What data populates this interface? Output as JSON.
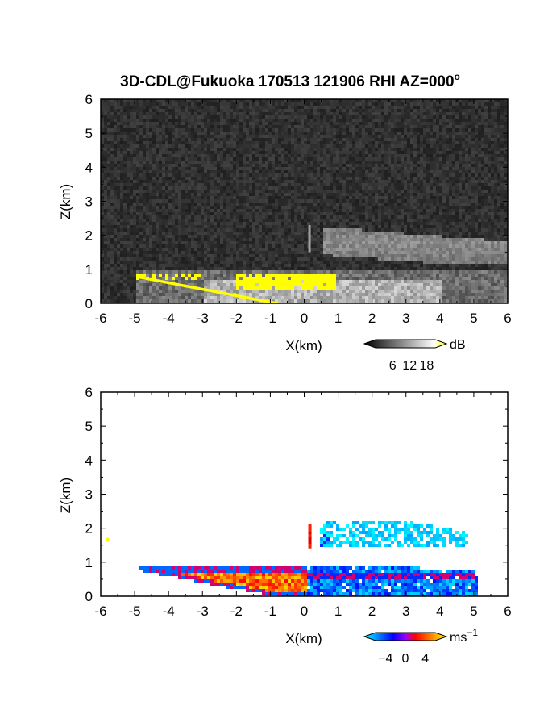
{
  "figure": {
    "title": "3D-CDL@Fukuoka 170513 121906 RHI AZ=000",
    "title_superscript": "o"
  },
  "chart_data": [
    {
      "type": "heatmap",
      "name": "snr-panel",
      "xlabel": "X(km)",
      "ylabel": "Z(km)",
      "xlim": [
        -6,
        6
      ],
      "ylim": [
        0,
        6
      ],
      "xticks": [
        "-6",
        "-5",
        "-4",
        "-3",
        "-2",
        "-1",
        "0",
        "1",
        "2",
        "3",
        "4",
        "5",
        "6"
      ],
      "yticks": [
        "0",
        "1",
        "2",
        "3",
        "4",
        "5",
        "6"
      ],
      "colorbar": {
        "unit": "dB",
        "ticks": [
          "6",
          "12",
          "18"
        ],
        "tick_values": [
          6,
          12,
          18
        ],
        "range": [
          0,
          21
        ],
        "palette": "grayscale-to-yellow"
      },
      "background_color": "#2b2b2b",
      "high_color": "#ffff00",
      "features": [
        {
          "label": "boundary-layer echo",
          "x_range": [
            -5,
            4
          ],
          "z_top": 0.8,
          "level_db": 15
        },
        {
          "label": "elevated layer",
          "x_range": [
            0.4,
            6
          ],
          "z_range": [
            1.5,
            2.3
          ],
          "level_db": 10
        },
        {
          "label": "saturated core",
          "x_range": [
            -2,
            1
          ],
          "z_range": [
            0.5,
            0.9
          ],
          "level_db": 20
        }
      ]
    },
    {
      "type": "heatmap",
      "name": "doppler-velocity-panel",
      "xlabel": "X(km)",
      "ylabel": "Z(km)",
      "xlim": [
        -6,
        6
      ],
      "ylim": [
        0,
        6
      ],
      "xticks": [
        "-6",
        "-5",
        "-4",
        "-3",
        "-2",
        "-1",
        "0",
        "1",
        "2",
        "3",
        "4",
        "5",
        "6"
      ],
      "yticks": [
        "0",
        "1",
        "2",
        "3",
        "4",
        "5",
        "6"
      ],
      "colorbar": {
        "unit": "ms",
        "unit_superscript": "−1",
        "ticks": [
          "−4",
          "0",
          "4"
        ],
        "tick_values": [
          -4,
          0,
          4
        ],
        "range": [
          -6,
          6
        ],
        "palette": "cyan-blue-red-yellow"
      },
      "features": [
        {
          "label": "lower layer negative",
          "x_range": [
            0,
            5
          ],
          "z_range": [
            0,
            0.9
          ],
          "velocity": -3
        },
        {
          "label": "lower layer positive",
          "x_range": [
            -5,
            0
          ],
          "z_range": [
            0,
            1
          ],
          "velocity": 4
        },
        {
          "label": "elevated layer",
          "x_range": [
            0.4,
            4.8
          ],
          "z_range": [
            1.5,
            2.3
          ],
          "velocity": -5
        },
        {
          "label": "vertical streak",
          "x_range": [
            0.1,
            0.2
          ],
          "z_range": [
            1.5,
            2.2
          ],
          "velocity": 2
        }
      ]
    }
  ]
}
